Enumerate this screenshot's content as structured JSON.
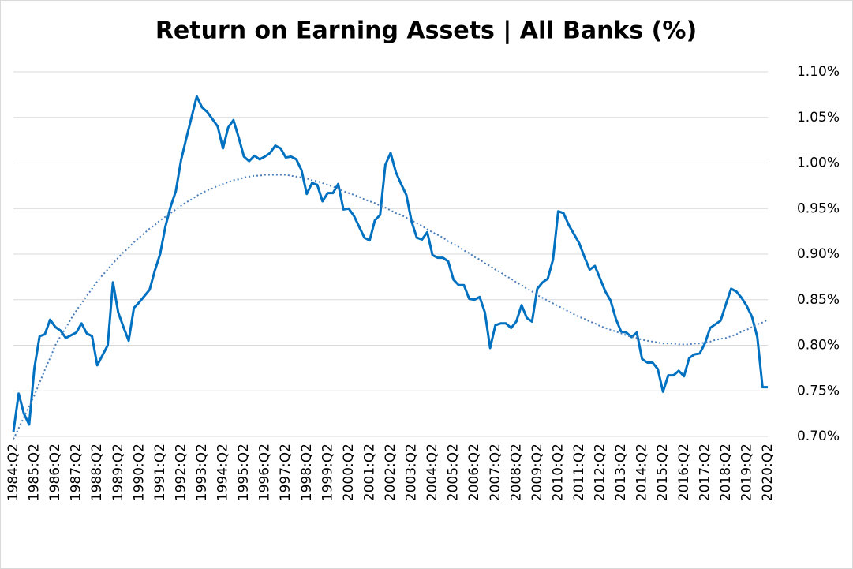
{
  "chart_data": {
    "type": "line",
    "title": "Return on Earning Assets | All Banks (%)",
    "categories": [
      "1984:Q2",
      null,
      null,
      null,
      "1985:Q2",
      null,
      null,
      null,
      "1986:Q2",
      null,
      null,
      null,
      "1987:Q2",
      null,
      null,
      null,
      "1988:Q2",
      null,
      null,
      null,
      "1989:Q2",
      null,
      null,
      null,
      "1990:Q2",
      null,
      null,
      null,
      "1991:Q2",
      null,
      null,
      null,
      "1992:Q2",
      null,
      null,
      null,
      "1993:Q2",
      null,
      null,
      null,
      "1994:Q2",
      null,
      null,
      null,
      "1995:Q2",
      null,
      null,
      null,
      "1996:Q2",
      null,
      null,
      null,
      "1997:Q2",
      null,
      null,
      null,
      "1998:Q2",
      null,
      null,
      null,
      "1999:Q2",
      null,
      null,
      null,
      "2000:Q2",
      null,
      null,
      null,
      "2001:Q2",
      null,
      null,
      null,
      "2002:Q2",
      null,
      null,
      null,
      "2003:Q2",
      null,
      null,
      null,
      "2004:Q2",
      null,
      null,
      null,
      "2005:Q2",
      null,
      null,
      null,
      "2006:Q2",
      null,
      null,
      null,
      "2007:Q2",
      null,
      null,
      null,
      "2008:Q2",
      null,
      null,
      null,
      "2009:Q2",
      null,
      null,
      null,
      "2010:Q2",
      null,
      null,
      null,
      "2011:Q2",
      null,
      null,
      null,
      "2012:Q2",
      null,
      null,
      null,
      "2013:Q2",
      null,
      null,
      null,
      "2014:Q2",
      null,
      null,
      null,
      "2015:Q2",
      null,
      null,
      null,
      "2016:Q2",
      null,
      null,
      null,
      "2017:Q2",
      null,
      null,
      null,
      "2018:Q2",
      null,
      null,
      null,
      "2019:Q2",
      null,
      null,
      null,
      "2020:Q2"
    ],
    "series": [
      {
        "color": "#0070c0",
        "style": "solid",
        "values": [
          0.705,
          0.747,
          0.725,
          0.713,
          0.775,
          0.81,
          0.812,
          0.828,
          0.82,
          0.816,
          0.808,
          0.811,
          0.814,
          0.824,
          0.813,
          0.81,
          0.778,
          0.789,
          0.8,
          0.869,
          0.836,
          0.82,
          0.805,
          0.841,
          0.847,
          0.854,
          0.861,
          0.882,
          0.9,
          0.93,
          0.952,
          0.969,
          1.003,
          1.027,
          1.05,
          1.073,
          1.061,
          1.056,
          1.048,
          1.04,
          1.016,
          1.039,
          1.047,
          1.028,
          1.007,
          1.002,
          1.008,
          1.004,
          1.007,
          1.011,
          1.019,
          1.016,
          1.006,
          1.007,
          1.004,
          0.992,
          0.966,
          0.978,
          0.976,
          0.958,
          0.967,
          0.967,
          0.977,
          0.949,
          0.95,
          0.942,
          0.93,
          0.918,
          0.915,
          0.937,
          0.943,
          0.998,
          1.011,
          0.99,
          0.977,
          0.965,
          0.936,
          0.918,
          0.916,
          0.924,
          0.899,
          0.896,
          0.896,
          0.892,
          0.872,
          0.866,
          0.866,
          0.851,
          0.85,
          0.853,
          0.836,
          0.797,
          0.822,
          0.824,
          0.824,
          0.819,
          0.826,
          0.844,
          0.83,
          0.826,
          0.862,
          0.869,
          0.873,
          0.894,
          0.947,
          0.945,
          0.932,
          0.922,
          0.912,
          0.897,
          0.883,
          0.887,
          0.873,
          0.859,
          0.849,
          0.829,
          0.815,
          0.814,
          0.809,
          0.814,
          0.785,
          0.781,
          0.781,
          0.774,
          0.749,
          0.767,
          0.767,
          0.772,
          0.766,
          0.786,
          0.79,
          0.791,
          0.802,
          0.819,
          0.823,
          0.827,
          0.845,
          0.862,
          0.859,
          0.852,
          0.843,
          0.831,
          0.809,
          0.754,
          0.754
        ]
      },
      {
        "color": "#4a7ebb",
        "style": "dotted",
        "values": [
          0.697,
          0.709,
          0.721,
          0.733,
          0.745,
          0.759,
          0.773,
          0.786,
          0.8,
          0.81,
          0.819,
          0.829,
          0.838,
          0.846,
          0.854,
          0.862,
          0.87,
          0.877,
          0.883,
          0.89,
          0.896,
          0.902,
          0.907,
          0.913,
          0.918,
          0.923,
          0.928,
          0.932,
          0.937,
          0.941,
          0.945,
          0.949,
          0.953,
          0.957,
          0.96,
          0.964,
          0.967,
          0.97,
          0.972,
          0.975,
          0.977,
          0.979,
          0.981,
          0.982,
          0.984,
          0.985,
          0.986,
          0.986,
          0.987,
          0.987,
          0.987,
          0.987,
          0.987,
          0.986,
          0.985,
          0.984,
          0.983,
          0.981,
          0.98,
          0.978,
          0.976,
          0.974,
          0.972,
          0.969,
          0.967,
          0.965,
          0.963,
          0.96,
          0.958,
          0.956,
          0.953,
          0.951,
          0.948,
          0.945,
          0.943,
          0.94,
          0.937,
          0.934,
          0.931,
          0.927,
          0.924,
          0.921,
          0.918,
          0.914,
          0.911,
          0.908,
          0.904,
          0.901,
          0.897,
          0.894,
          0.89,
          0.887,
          0.883,
          0.88,
          0.876,
          0.873,
          0.869,
          0.866,
          0.862,
          0.859,
          0.855,
          0.852,
          0.849,
          0.846,
          0.843,
          0.84,
          0.837,
          0.834,
          0.831,
          0.829,
          0.826,
          0.824,
          0.821,
          0.819,
          0.817,
          0.815,
          0.813,
          0.811,
          0.809,
          0.808,
          0.806,
          0.805,
          0.804,
          0.803,
          0.802,
          0.802,
          0.802,
          0.801,
          0.801,
          0.801,
          0.802,
          0.802,
          0.803,
          0.804,
          0.806,
          0.807,
          0.808,
          0.81,
          0.812,
          0.815,
          0.817,
          0.82,
          0.823,
          0.825,
          0.828
        ]
      }
    ],
    "ylim": [
      0.7,
      1.1
    ],
    "yticks": [
      {
        "value": 0.7,
        "label": "0.70%"
      },
      {
        "value": 0.75,
        "label": "0.75%"
      },
      {
        "value": 0.8,
        "label": "0.80%"
      },
      {
        "value": 0.85,
        "label": "0.85%"
      },
      {
        "value": 0.9,
        "label": "0.90%"
      },
      {
        "value": 0.95,
        "label": "0.95%"
      },
      {
        "value": 1.0,
        "label": "1.00%"
      },
      {
        "value": 1.05,
        "label": "1.05%"
      },
      {
        "value": 1.1,
        "label": "1.10%"
      }
    ],
    "grid": true
  }
}
